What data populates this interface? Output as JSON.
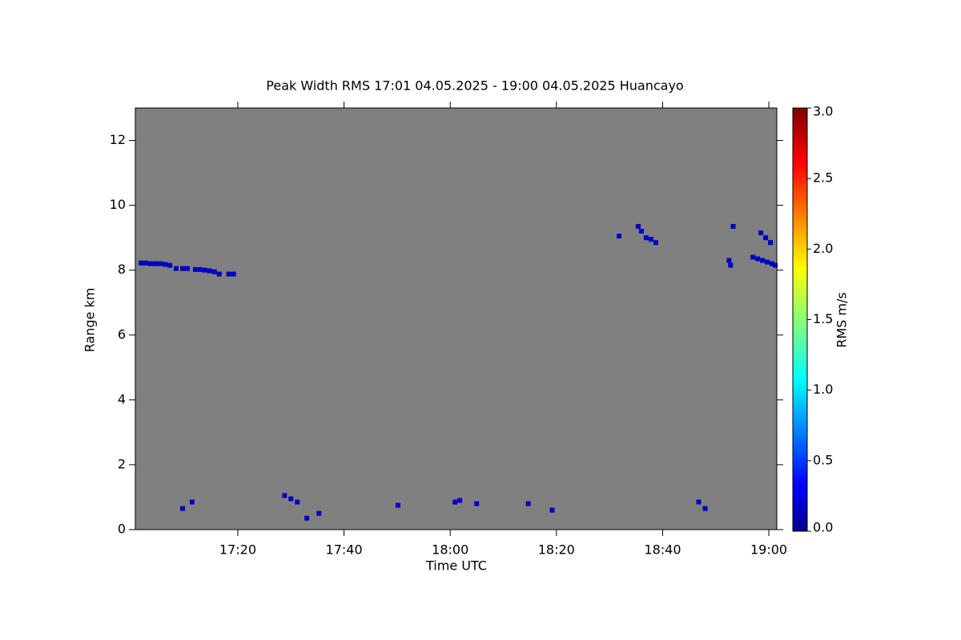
{
  "chart_data": {
    "type": "heatmap",
    "title": "Peak Width RMS   17:01 04.05.2025 - 19:00 04.05.2025 Huancayo",
    "x_label": "Time UTC",
    "y_label": "Range km",
    "xlim": [
      17.0117,
      19.025
    ],
    "xticks": [
      {
        "value": 17.3333,
        "label": "17:20"
      },
      {
        "value": 17.6667,
        "label": "17:40"
      },
      {
        "value": 18.0,
        "label": "18:00"
      },
      {
        "value": 18.3333,
        "label": "18:20"
      },
      {
        "value": 18.6667,
        "label": "18:40"
      },
      {
        "value": 19.0,
        "label": "19:00"
      }
    ],
    "ylim": [
      0,
      13
    ],
    "yticks": [
      0,
      2,
      4,
      6,
      8,
      10,
      12
    ],
    "background": "#808080",
    "colormap": "jet",
    "colorbar": {
      "label": "RMS m/s",
      "lim": [
        0,
        3
      ],
      "ticks": [
        {
          "value": 0,
          "label": "0.0"
        },
        {
          "value": 0.5,
          "label": "0.5"
        },
        {
          "value": 1,
          "label": "1.0"
        },
        {
          "value": 1.5,
          "label": "1.5"
        },
        {
          "value": 2,
          "label": "2.0"
        },
        {
          "value": 2.5,
          "label": "2.5"
        },
        {
          "value": 3,
          "label": "3.0"
        }
      ]
    },
    "cells": {
      "x": [
        17.03,
        17.045,
        17.06,
        17.075,
        17.09,
        17.105,
        17.12,
        17.14,
        17.16,
        17.175,
        17.2,
        17.215,
        17.23,
        17.245,
        17.26,
        17.275,
        17.305,
        17.32,
        18.53,
        18.59,
        18.6,
        18.615,
        18.63,
        18.645,
        18.875,
        18.88,
        18.888,
        18.95,
        18.965,
        18.98,
        18.995,
        19.01,
        19.02,
        18.975,
        18.99,
        19.005,
        17.16,
        17.19,
        17.48,
        17.5,
        17.52,
        17.55,
        17.588,
        17.836,
        18.015,
        18.03,
        18.083,
        18.245,
        18.32,
        18.78,
        18.8
      ],
      "y": [
        8.22,
        8.22,
        8.2,
        8.2,
        8.2,
        8.18,
        8.15,
        8.05,
        8.05,
        8.05,
        8.02,
        8.02,
        8.0,
        7.98,
        7.95,
        7.88,
        7.88,
        7.88,
        9.05,
        9.35,
        9.2,
        9.0,
        8.95,
        8.85,
        8.3,
        8.15,
        9.35,
        8.4,
        8.35,
        8.3,
        8.25,
        8.2,
        8.15,
        9.15,
        9.0,
        8.85,
        0.65,
        0.85,
        1.05,
        0.95,
        0.85,
        0.35,
        0.5,
        0.75,
        0.85,
        0.9,
        0.8,
        0.8,
        0.6,
        0.85,
        0.65
      ],
      "values": [
        0.2,
        0.2,
        0.2,
        0.2,
        0.2,
        0.2,
        0.2,
        0.2,
        0.2,
        0.2,
        0.2,
        0.2,
        0.2,
        0.2,
        0.2,
        0.2,
        0.2,
        0.2,
        0.2,
        0.2,
        0.2,
        0.2,
        0.2,
        0.2,
        0.2,
        0.2,
        0.2,
        0.2,
        0.2,
        0.2,
        0.2,
        0.2,
        0.2,
        0.2,
        0.2,
        0.2,
        0.2,
        0.2,
        0.2,
        0.2,
        0.2,
        0.2,
        0.2,
        0.2,
        0.2,
        0.2,
        0.2,
        0.2,
        0.2,
        0.2,
        0.2
      ]
    }
  }
}
